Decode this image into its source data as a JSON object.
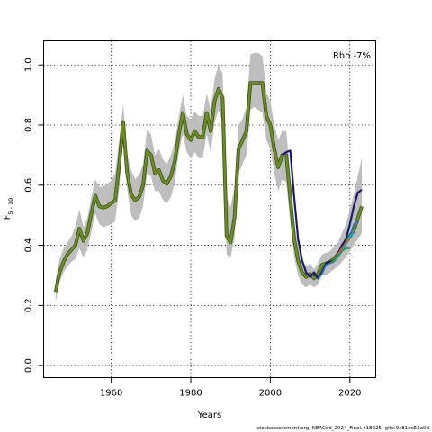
{
  "chart_data": {
    "type": "line",
    "title": "",
    "xlabel": "Years",
    "ylabel_main": "F",
    "ylabel_sub": "5 - 10",
    "annotation": "Rho -7%",
    "footer": "stockassessment.org, NEACod_2024_Final, r18225, gitc:9c81ec53a0d",
    "xlim": [
      1943,
      2026.5
    ],
    "ylim": [
      -0.04,
      1.08
    ],
    "xticks": [
      1960,
      1980,
      2000,
      2020
    ],
    "yticks": [
      0.0,
      0.2,
      0.4,
      0.6,
      0.8,
      1.0
    ],
    "xtick_labels": [
      "1960",
      "1980",
      "2000",
      "2020"
    ],
    "ytick_labels": [
      "0.0",
      "0.2",
      "0.4",
      "0.6",
      "0.8",
      "1.0"
    ],
    "grid": true,
    "colors": {
      "band": "#bebebe",
      "main": "#6b8e23",
      "retro_dark": "#191970",
      "retro_blue": "#1e6fd9",
      "retro_cyan": "#00bcd4",
      "retro_green": "#2e8b57",
      "retro_orange": "#d2691e"
    },
    "years": [
      1946,
      1947,
      1948,
      1949,
      1950,
      1951,
      1952,
      1953,
      1954,
      1955,
      1956,
      1957,
      1958,
      1959,
      1960,
      1961,
      1962,
      1963,
      1964,
      1965,
      1966,
      1967,
      1968,
      1969,
      1970,
      1971,
      1972,
      1973,
      1974,
      1975,
      1976,
      1977,
      1978,
      1979,
      1980,
      1981,
      1982,
      1983,
      1984,
      1985,
      1986,
      1987,
      1988,
      1989,
      1990,
      1991,
      1992,
      1993,
      1994,
      1995,
      1996,
      1997,
      1998,
      1999,
      2000,
      2001,
      2002,
      2003,
      2004,
      2005,
      2006,
      2007,
      2008,
      2009,
      2010,
      2011,
      2012,
      2013,
      2014,
      2015,
      2016,
      2017,
      2018,
      2019,
      2020,
      2021,
      2022,
      2023
    ],
    "estimate": [
      0.245,
      0.31,
      0.345,
      0.37,
      0.385,
      0.4,
      0.455,
      0.415,
      0.44,
      0.505,
      0.565,
      0.53,
      0.525,
      0.53,
      0.54,
      0.55,
      0.67,
      0.81,
      0.64,
      0.57,
      0.55,
      0.56,
      0.6,
      0.715,
      0.7,
      0.64,
      0.65,
      0.615,
      0.605,
      0.63,
      0.68,
      0.77,
      0.84,
      0.77,
      0.75,
      0.78,
      0.76,
      0.76,
      0.84,
      0.78,
      0.88,
      0.92,
      0.89,
      0.43,
      0.41,
      0.49,
      0.72,
      0.75,
      0.78,
      0.94,
      0.94,
      0.94,
      0.94,
      0.83,
      0.8,
      0.72,
      0.66,
      0.7,
      0.7,
      0.56,
      0.42,
      0.35,
      0.31,
      0.295,
      0.305,
      0.29,
      0.305,
      0.335,
      0.34,
      0.345,
      0.355,
      0.37,
      0.39,
      0.41,
      0.43,
      0.45,
      0.49,
      0.53
    ],
    "upper": [
      0.285,
      0.355,
      0.39,
      0.41,
      0.43,
      0.465,
      0.52,
      0.46,
      0.49,
      0.56,
      0.62,
      0.595,
      0.595,
      0.605,
      0.615,
      0.64,
      0.75,
      0.87,
      0.7,
      0.65,
      0.62,
      0.635,
      0.67,
      0.785,
      0.77,
      0.7,
      0.72,
      0.685,
      0.67,
      0.7,
      0.745,
      0.83,
      0.9,
      0.83,
      0.82,
      0.845,
      0.83,
      0.83,
      0.905,
      0.85,
      0.955,
      1.0,
      0.97,
      0.56,
      0.53,
      0.59,
      0.8,
      0.82,
      0.86,
      1.035,
      1.04,
      1.04,
      1.03,
      0.91,
      0.88,
      0.8,
      0.75,
      0.78,
      0.78,
      0.64,
      0.48,
      0.395,
      0.345,
      0.33,
      0.34,
      0.32,
      0.34,
      0.37,
      0.375,
      0.38,
      0.395,
      0.41,
      0.44,
      0.47,
      0.52,
      0.57,
      0.63,
      0.69
    ],
    "lower": [
      0.21,
      0.28,
      0.31,
      0.33,
      0.345,
      0.355,
      0.39,
      0.36,
      0.385,
      0.445,
      0.505,
      0.47,
      0.46,
      0.465,
      0.47,
      0.48,
      0.59,
      0.75,
      0.585,
      0.5,
      0.48,
      0.49,
      0.53,
      0.64,
      0.63,
      0.58,
      0.58,
      0.55,
      0.54,
      0.56,
      0.61,
      0.71,
      0.77,
      0.71,
      0.69,
      0.71,
      0.69,
      0.69,
      0.77,
      0.71,
      0.81,
      0.85,
      0.81,
      0.37,
      0.36,
      0.42,
      0.64,
      0.67,
      0.7,
      0.85,
      0.86,
      0.85,
      0.84,
      0.75,
      0.72,
      0.64,
      0.58,
      0.62,
      0.61,
      0.48,
      0.36,
      0.3,
      0.27,
      0.26,
      0.27,
      0.26,
      0.27,
      0.3,
      0.3,
      0.31,
      0.32,
      0.33,
      0.345,
      0.36,
      0.38,
      0.4,
      0.42,
      0.44
    ],
    "series": [
      {
        "color_key": "retro_dark",
        "years": [
          2003,
          2004,
          2005,
          2006,
          2007,
          2008,
          2009,
          2010,
          2011,
          2012,
          2013,
          2014,
          2015,
          2016,
          2017,
          2018,
          2019,
          2020,
          2021,
          2022,
          2023
        ],
        "values": [
          0.7,
          0.71,
          0.715,
          0.56,
          0.42,
          0.35,
          0.31,
          0.295,
          0.31,
          0.29,
          0.31,
          0.34,
          0.345,
          0.35,
          0.37,
          0.4,
          0.42,
          0.47,
          0.53,
          0.575,
          0.585
        ]
      },
      {
        "color_key": "retro_blue",
        "years": [
          2012,
          2013,
          2014,
          2015,
          2016,
          2017,
          2018,
          2019,
          2020,
          2021,
          2022
        ],
        "values": [
          0.29,
          0.305,
          0.335,
          0.34,
          0.345,
          0.36,
          0.38,
          0.4,
          0.43,
          0.47,
          0.48
        ]
      },
      {
        "color_key": "retro_cyan",
        "years": [
          2016,
          2017,
          2018,
          2019,
          2020,
          2021
        ],
        "values": [
          0.345,
          0.36,
          0.38,
          0.4,
          0.43,
          0.44
        ]
      },
      {
        "color_key": "retro_orange",
        "years": [
          2015,
          2016,
          2017,
          2018,
          2019,
          2020
        ],
        "values": [
          0.34,
          0.35,
          0.37,
          0.39,
          0.41,
          0.42
        ]
      },
      {
        "color_key": "retro_green",
        "years": [
          2015,
          2016,
          2017,
          2018,
          2019,
          2020
        ],
        "values": [
          0.34,
          0.35,
          0.365,
          0.38,
          0.39,
          0.39
        ]
      }
    ]
  }
}
